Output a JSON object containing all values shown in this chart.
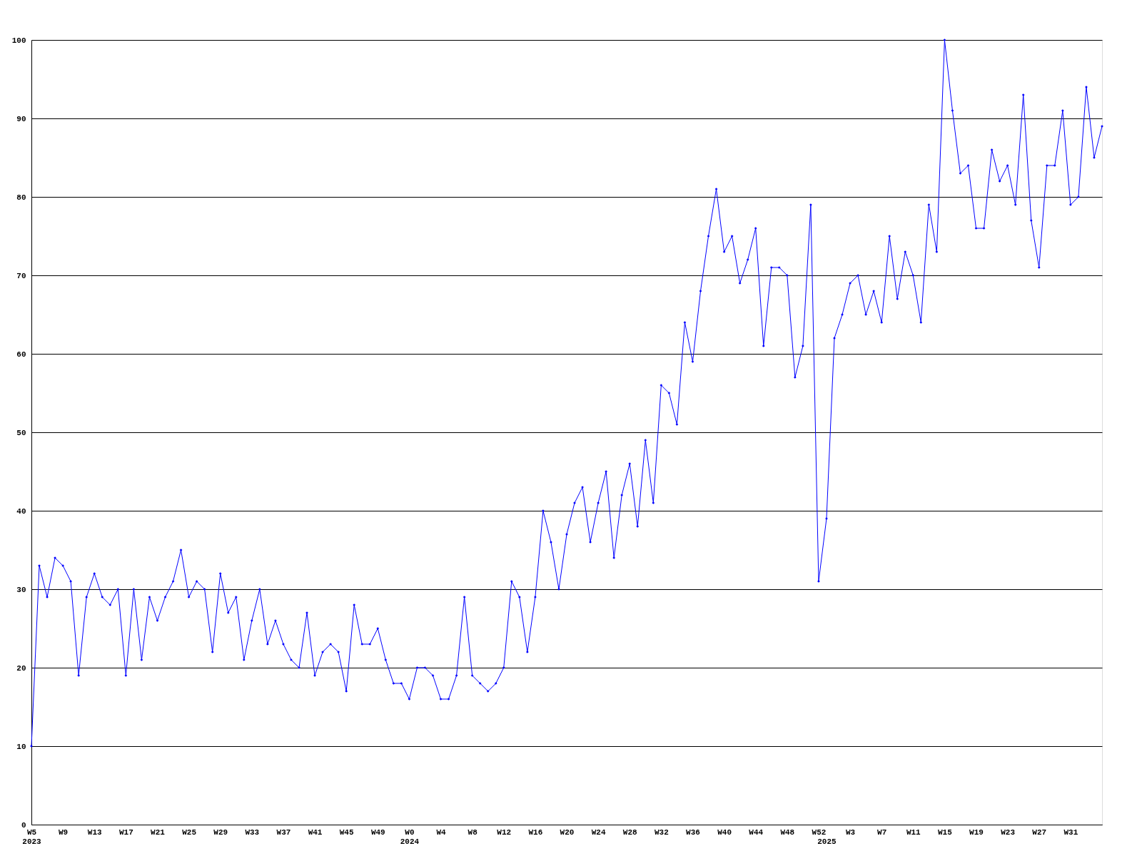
{
  "chart_data": {
    "type": "line",
    "categories": [
      "W5\n2023",
      null,
      null,
      null,
      "W9",
      null,
      null,
      null,
      "W13",
      null,
      null,
      null,
      "W17",
      null,
      null,
      null,
      "W21",
      null,
      null,
      null,
      "W25",
      null,
      null,
      null,
      "W29",
      null,
      null,
      null,
      "W33",
      null,
      null,
      null,
      "W37",
      null,
      null,
      null,
      "W41",
      null,
      null,
      null,
      "W45",
      null,
      null,
      null,
      "W49",
      null,
      null,
      null,
      "W0\n2024",
      null,
      null,
      null,
      "W4",
      null,
      null,
      null,
      "W8",
      null,
      null,
      null,
      "W12",
      null,
      null,
      null,
      "W16",
      null,
      null,
      null,
      "W20",
      null,
      null,
      null,
      "W24",
      null,
      null,
      null,
      "W28",
      null,
      null,
      null,
      "W32",
      null,
      null,
      null,
      "W36",
      null,
      null,
      null,
      "W40",
      null,
      null,
      null,
      "W44",
      null,
      null,
      null,
      "W48",
      null,
      null,
      null,
      "W52",
      "\n2025",
      null,
      null,
      "W3",
      null,
      null,
      null,
      "W7",
      null,
      null,
      null,
      "W11",
      null,
      null,
      null,
      "W15",
      null,
      null,
      null,
      "W19",
      null,
      null,
      null,
      "W23",
      null,
      null,
      null,
      "W27",
      null,
      null,
      null,
      "W31",
      null,
      null,
      null,
      null
    ],
    "series": [
      {
        "color": "#0000ff",
        "values": [
          10,
          33,
          29,
          34,
          33,
          31,
          19,
          29,
          32,
          29,
          28,
          30,
          19,
          30,
          21,
          29,
          26,
          29,
          31,
          35,
          29,
          31,
          30,
          22,
          32,
          27,
          29,
          21,
          26,
          30,
          23,
          26,
          23,
          21,
          20,
          27,
          19,
          22,
          23,
          22,
          17,
          28,
          23,
          23,
          25,
          21,
          18,
          18,
          16,
          20,
          20,
          19,
          16,
          16,
          19,
          29,
          19,
          18,
          17,
          18,
          20,
          31,
          29,
          22,
          29,
          40,
          36,
          30,
          37,
          41,
          43,
          36,
          41,
          45,
          34,
          42,
          46,
          38,
          49,
          41,
          56,
          55,
          51,
          64,
          59,
          68,
          75,
          81,
          73,
          75,
          69,
          72,
          76,
          61,
          71,
          71,
          70,
          57,
          61,
          79,
          31,
          39,
          62,
          65,
          69,
          70,
          65,
          68,
          64,
          75,
          67,
          73,
          70,
          64,
          79,
          73,
          100,
          91,
          83,
          84,
          76,
          76,
          86,
          82,
          84,
          79,
          93,
          77,
          71,
          84,
          84,
          91,
          79,
          80,
          94,
          85,
          89
        ]
      }
    ],
    "ylim": [
      0,
      100
    ],
    "yticks": [
      0,
      10,
      20,
      30,
      40,
      50,
      60,
      70,
      80,
      90,
      100
    ],
    "grid": "y",
    "marker": "diamond",
    "line_style": "solid"
  }
}
